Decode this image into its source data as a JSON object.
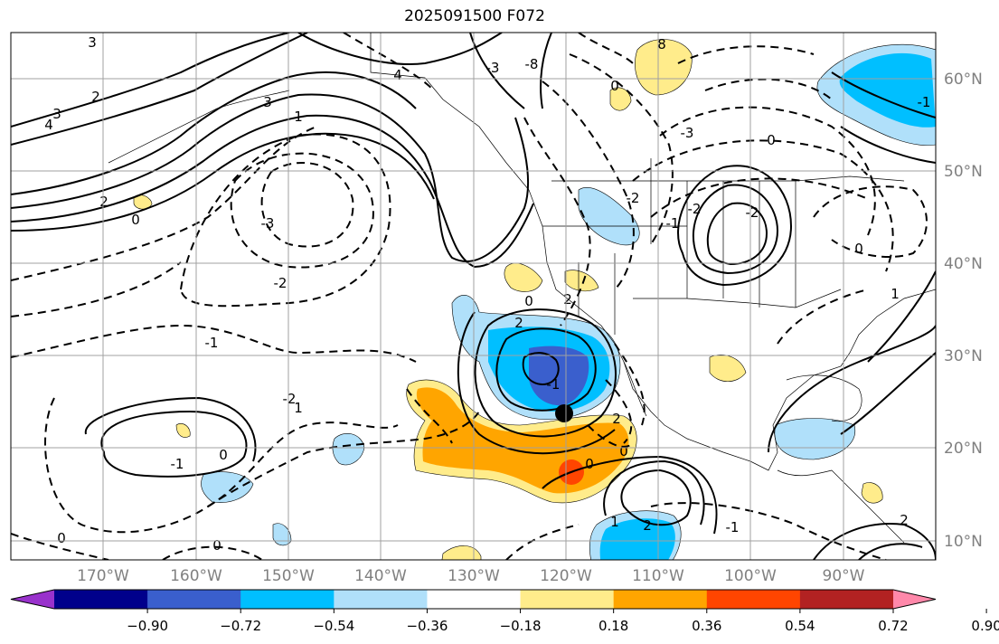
{
  "title": "2025091500 F072",
  "lat_labels": [
    "60°N",
    "50°N",
    "40°N",
    "30°N",
    "20°N",
    "10°N"
  ],
  "lon_labels": [
    "170°W",
    "160°W",
    "150°W",
    "140°W",
    "130°W",
    "120°W",
    "110°W",
    "100°W",
    "90°W"
  ],
  "colorbar": {
    "ticks": [
      "−0.90",
      "−0.72",
      "−0.54",
      "−0.36",
      "−0.18",
      "0.18",
      "0.36",
      "0.54",
      "0.72",
      "0.90"
    ],
    "colors": [
      "#9932cc",
      "#00008b",
      "#3a5fcd",
      "#00bfff",
      "#b0e0fa",
      "#ffffff",
      "#ffec8b",
      "#ffa500",
      "#ff4500",
      "#b22222",
      "#ff88aa"
    ]
  },
  "contour_labels": [
    "3",
    "2",
    "3",
    "4",
    "4",
    "1",
    "2",
    "-3",
    "-2",
    "-1",
    "0",
    "-2",
    "-1",
    "1",
    "0",
    "-1",
    "-2",
    "8",
    "0",
    "-8",
    "-3",
    "0",
    "-2",
    "-2",
    "2",
    "0",
    "2",
    "3",
    "2",
    "-1",
    "-3",
    "1",
    "2",
    "-1",
    "0",
    "0",
    "0",
    "-1",
    "0",
    "2",
    "1",
    "0"
  ],
  "marker": {
    "label": "storm-center"
  }
}
